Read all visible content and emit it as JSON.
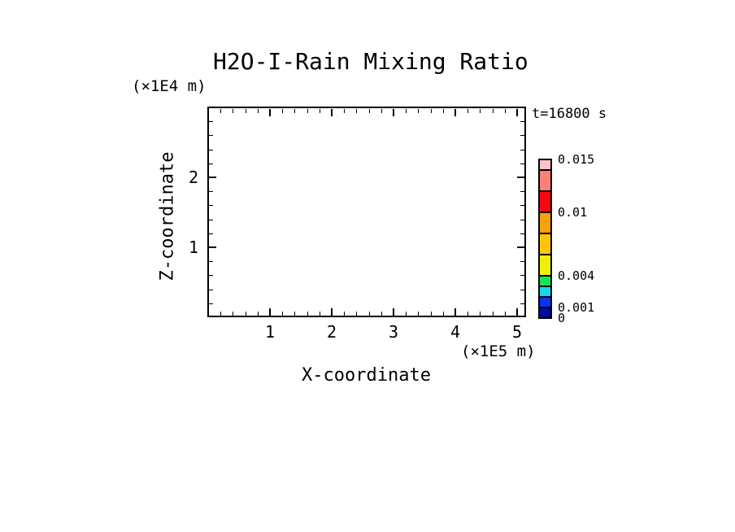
{
  "title": "H2O-I-Rain Mixing Ratio",
  "annotations": {
    "time_label": "t=16800 s"
  },
  "axes": {
    "x": {
      "label": "X-coordinate",
      "unit_label": "(×1E5 m)",
      "min": 0,
      "max": 5.13,
      "minor_step": 0.2,
      "major_ticks": [
        1,
        2,
        3,
        4,
        5
      ],
      "tick_labels": [
        "1",
        "2",
        "3",
        "4",
        "5"
      ]
    },
    "z": {
      "label": "Z-coordinate",
      "unit_label": "(×1E4 m)",
      "min": 0,
      "max": 3.0,
      "minor_step": 0.2,
      "major_ticks": [
        1,
        2
      ],
      "tick_labels": [
        "1",
        "2"
      ]
    }
  },
  "colorbar": {
    "levels": [
      0,
      0.001,
      0.002,
      0.003,
      0.004,
      0.006,
      0.008,
      0.01,
      0.012,
      0.014,
      0.015
    ],
    "colors_bottom_to_top": [
      "#0009A0",
      "#0535F2",
      "#18D5F2",
      "#10E55A",
      "#EFEF08",
      "#FBC504",
      "#FAA008",
      "#F5070F",
      "#FA8078",
      "#FAC3CA"
    ],
    "labels": [
      {
        "text": "0.015",
        "value": 0.015
      },
      {
        "text": "0.01",
        "value": 0.01
      },
      {
        "text": "0.004",
        "value": 0.004
      },
      {
        "text": "0.001",
        "value": 0.001
      },
      {
        "text": "0",
        "value": 0
      }
    ]
  },
  "chart_data": {
    "type": "heatmap",
    "title": "H2O-I-Rain Mixing Ratio",
    "xlabel": "X-coordinate",
    "ylabel": "Z-coordinate",
    "x_unit": "(×1E5 m)",
    "y_unit": "(×1E4 m)",
    "xlim": [
      0,
      5.13
    ],
    "ylim": [
      0,
      3.0
    ],
    "x_major_ticks": [
      1,
      2,
      3,
      4,
      5
    ],
    "y_major_ticks": [
      1,
      2
    ],
    "time_annotation": "t=16800 s",
    "colorbar_levels": [
      0,
      0.001,
      0.002,
      0.003,
      0.004,
      0.006,
      0.008,
      0.01,
      0.012,
      0.014,
      0.015
    ],
    "colorbar_colors": [
      "#0009A0",
      "#0535F2",
      "#18D5F2",
      "#10E55A",
      "#EFEF08",
      "#FBC504",
      "#FAA008",
      "#F5070F",
      "#FA8078",
      "#FAC3CA"
    ],
    "colorbar_labeled_values": [
      0,
      0.001,
      0.004,
      0.01,
      0.015
    ],
    "field_values": [],
    "note": "plot interior is empty (no nonzero mixing-ratio field shown)"
  }
}
